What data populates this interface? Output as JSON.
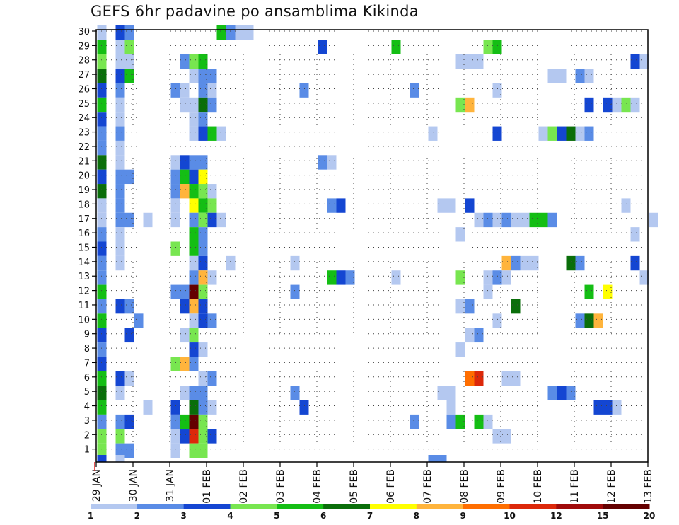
{
  "chart_data": {
    "type": "heatmap",
    "title": "GEFS 6hr padavine po ansamblima Kikinda",
    "ensemble_members": [
      1,
      2,
      3,
      4,
      5,
      6,
      7,
      8,
      9,
      10,
      11,
      12,
      13,
      14,
      15,
      16,
      17,
      18,
      19,
      20,
      21,
      22,
      23,
      24,
      25,
      26,
      27,
      28,
      29,
      30
    ],
    "x_labels": [
      "29 JAN",
      "30 JAN",
      "31 JAN",
      "01 FEB",
      "02 FEB",
      "03 FEB",
      "04 FEB",
      "05 FEB",
      "06 FEB",
      "07 FEB",
      "08 FEB",
      "09 FEB",
      "10 FEB",
      "11 FEB",
      "12 FEB",
      "13 FEB"
    ],
    "steps_per_day": 4,
    "grid": true,
    "legend_position": "bottom",
    "legend": {
      "levels": [
        "1",
        "2",
        "3",
        "4",
        "5",
        "6",
        "7",
        "8",
        "9",
        "10",
        "12",
        "15",
        "20"
      ],
      "colors": [
        "#b4c8f0",
        "#5a8ce6",
        "#1446d2",
        "#78e650",
        "#14be14",
        "#0a6e0a",
        "#ffff00",
        "#ffb43c",
        "#ff6e00",
        "#dc280a",
        "#a00a0a",
        "#640000"
      ]
    },
    "cells": [
      {
        "m": 30,
        "t": 0,
        "c": 0
      },
      {
        "m": 30,
        "t": 2,
        "c": 2
      },
      {
        "m": 30,
        "t": 3,
        "c": 1
      },
      {
        "m": 30,
        "t": 13,
        "c": 4
      },
      {
        "m": 30,
        "t": 14,
        "c": 1
      },
      {
        "m": 30,
        "t": 15,
        "c": 0
      },
      {
        "m": 30,
        "t": 16,
        "c": 0
      },
      {
        "m": 29,
        "t": 0,
        "c": 4
      },
      {
        "m": 29,
        "t": 2,
        "c": 0
      },
      {
        "m": 29,
        "t": 3,
        "c": 3
      },
      {
        "m": 29,
        "t": 24,
        "c": 2
      },
      {
        "m": 29,
        "t": 32,
        "c": 4
      },
      {
        "m": 29,
        "t": 42,
        "c": 3
      },
      {
        "m": 29,
        "t": 43,
        "c": 4
      },
      {
        "m": 28,
        "t": 0,
        "c": 3
      },
      {
        "m": 28,
        "t": 2,
        "c": 0
      },
      {
        "m": 28,
        "t": 3,
        "c": 0
      },
      {
        "m": 28,
        "t": 9,
        "c": 1
      },
      {
        "m": 28,
        "t": 10,
        "c": 3
      },
      {
        "m": 28,
        "t": 11,
        "c": 4
      },
      {
        "m": 28,
        "t": 39,
        "c": 0
      },
      {
        "m": 28,
        "t": 40,
        "c": 0
      },
      {
        "m": 28,
        "t": 41,
        "c": 0
      },
      {
        "m": 28,
        "t": 58,
        "c": 2
      },
      {
        "m": 28,
        "t": 59,
        "c": 0
      },
      {
        "m": 27,
        "t": 0,
        "c": 5
      },
      {
        "m": 27,
        "t": 2,
        "c": 2
      },
      {
        "m": 27,
        "t": 3,
        "c": 4
      },
      {
        "m": 27,
        "t": 10,
        "c": 0
      },
      {
        "m": 27,
        "t": 11,
        "c": 1
      },
      {
        "m": 27,
        "t": 12,
        "c": 1
      },
      {
        "m": 27,
        "t": 49,
        "c": 0
      },
      {
        "m": 27,
        "t": 50,
        "c": 0
      },
      {
        "m": 27,
        "t": 52,
        "c": 1
      },
      {
        "m": 27,
        "t": 53,
        "c": 0
      },
      {
        "m": 26,
        "t": 0,
        "c": 2
      },
      {
        "m": 26,
        "t": 2,
        "c": 1
      },
      {
        "m": 26,
        "t": 8,
        "c": 1
      },
      {
        "m": 26,
        "t": 9,
        "c": 0
      },
      {
        "m": 26,
        "t": 11,
        "c": 1
      },
      {
        "m": 26,
        "t": 12,
        "c": 0
      },
      {
        "m": 26,
        "t": 22,
        "c": 1
      },
      {
        "m": 26,
        "t": 34,
        "c": 1
      },
      {
        "m": 26,
        "t": 43,
        "c": 0
      },
      {
        "m": 25,
        "t": 0,
        "c": 4
      },
      {
        "m": 25,
        "t": 2,
        "c": 0
      },
      {
        "m": 25,
        "t": 9,
        "c": 0
      },
      {
        "m": 25,
        "t": 10,
        "c": 0
      },
      {
        "m": 25,
        "t": 11,
        "c": 5
      },
      {
        "m": 25,
        "t": 12,
        "c": 1
      },
      {
        "m": 25,
        "t": 39,
        "c": 3
      },
      {
        "m": 25,
        "t": 40,
        "c": 7
      },
      {
        "m": 25,
        "t": 53,
        "c": 2
      },
      {
        "m": 25,
        "t": 55,
        "c": 2
      },
      {
        "m": 25,
        "t": 56,
        "c": 0
      },
      {
        "m": 25,
        "t": 57,
        "c": 3
      },
      {
        "m": 25,
        "t": 58,
        "c": 0
      },
      {
        "m": 24,
        "t": 0,
        "c": 2
      },
      {
        "m": 24,
        "t": 2,
        "c": 0
      },
      {
        "m": 24,
        "t": 10,
        "c": 0
      },
      {
        "m": 24,
        "t": 11,
        "c": 1
      },
      {
        "m": 23,
        "t": 0,
        "c": 1
      },
      {
        "m": 23,
        "t": 2,
        "c": 1
      },
      {
        "m": 23,
        "t": 10,
        "c": 0
      },
      {
        "m": 23,
        "t": 11,
        "c": 2
      },
      {
        "m": 23,
        "t": 12,
        "c": 4
      },
      {
        "m": 23,
        "t": 13,
        "c": 0
      },
      {
        "m": 23,
        "t": 36,
        "c": 0
      },
      {
        "m": 23,
        "t": 43,
        "c": 2
      },
      {
        "m": 23,
        "t": 48,
        "c": 0
      },
      {
        "m": 23,
        "t": 49,
        "c": 3
      },
      {
        "m": 23,
        "t": 50,
        "c": 2
      },
      {
        "m": 23,
        "t": 51,
        "c": 5
      },
      {
        "m": 23,
        "t": 52,
        "c": 0
      },
      {
        "m": 23,
        "t": 53,
        "c": 1
      },
      {
        "m": 22,
        "t": 0,
        "c": 1
      },
      {
        "m": 22,
        "t": 2,
        "c": 0
      },
      {
        "m": 21,
        "t": 0,
        "c": 5
      },
      {
        "m": 21,
        "t": 2,
        "c": 0
      },
      {
        "m": 21,
        "t": 8,
        "c": 0
      },
      {
        "m": 21,
        "t": 9,
        "c": 2
      },
      {
        "m": 21,
        "t": 10,
        "c": 1
      },
      {
        "m": 21,
        "t": 11,
        "c": 1
      },
      {
        "m": 21,
        "t": 24,
        "c": 1
      },
      {
        "m": 21,
        "t": 25,
        "c": 0
      },
      {
        "m": 20,
        "t": 0,
        "c": 2
      },
      {
        "m": 20,
        "t": 2,
        "c": 1
      },
      {
        "m": 20,
        "t": 3,
        "c": 1
      },
      {
        "m": 20,
        "t": 8,
        "c": 1
      },
      {
        "m": 20,
        "t": 9,
        "c": 4
      },
      {
        "m": 20,
        "t": 10,
        "c": 2
      },
      {
        "m": 20,
        "t": 11,
        "c": 6
      },
      {
        "m": 19,
        "t": 0,
        "c": 5
      },
      {
        "m": 19,
        "t": 2,
        "c": 1
      },
      {
        "m": 19,
        "t": 8,
        "c": 1
      },
      {
        "m": 19,
        "t": 9,
        "c": 7
      },
      {
        "m": 19,
        "t": 10,
        "c": 4
      },
      {
        "m": 19,
        "t": 11,
        "c": 3
      },
      {
        "m": 19,
        "t": 12,
        "c": 0
      },
      {
        "m": 18,
        "t": 0,
        "c": 0
      },
      {
        "m": 18,
        "t": 2,
        "c": 1
      },
      {
        "m": 18,
        "t": 8,
        "c": 0
      },
      {
        "m": 18,
        "t": 10,
        "c": 6
      },
      {
        "m": 18,
        "t": 11,
        "c": 4
      },
      {
        "m": 18,
        "t": 12,
        "c": 3
      },
      {
        "m": 18,
        "t": 25,
        "c": 1
      },
      {
        "m": 18,
        "t": 26,
        "c": 2
      },
      {
        "m": 18,
        "t": 37,
        "c": 0
      },
      {
        "m": 18,
        "t": 38,
        "c": 0
      },
      {
        "m": 18,
        "t": 40,
        "c": 2
      },
      {
        "m": 18,
        "t": 57,
        "c": 0
      },
      {
        "m": 17,
        "t": 0,
        "c": 0
      },
      {
        "m": 17,
        "t": 2,
        "c": 1
      },
      {
        "m": 17,
        "t": 3,
        "c": 1
      },
      {
        "m": 17,
        "t": 5,
        "c": 0
      },
      {
        "m": 17,
        "t": 8,
        "c": 0
      },
      {
        "m": 17,
        "t": 10,
        "c": 1
      },
      {
        "m": 17,
        "t": 11,
        "c": 3
      },
      {
        "m": 17,
        "t": 12,
        "c": 2
      },
      {
        "m": 17,
        "t": 13,
        "c": 0
      },
      {
        "m": 17,
        "t": 41,
        "c": 0
      },
      {
        "m": 17,
        "t": 42,
        "c": 1
      },
      {
        "m": 17,
        "t": 43,
        "c": 0
      },
      {
        "m": 17,
        "t": 44,
        "c": 1
      },
      {
        "m": 17,
        "t": 45,
        "c": 0
      },
      {
        "m": 17,
        "t": 46,
        "c": 0
      },
      {
        "m": 17,
        "t": 47,
        "c": 4
      },
      {
        "m": 17,
        "t": 48,
        "c": 4
      },
      {
        "m": 17,
        "t": 49,
        "c": 1
      },
      {
        "m": 17,
        "t": 60,
        "c": 0
      },
      {
        "m": 16,
        "t": 0,
        "c": 1
      },
      {
        "m": 16,
        "t": 2,
        "c": 0
      },
      {
        "m": 16,
        "t": 10,
        "c": 4
      },
      {
        "m": 16,
        "t": 11,
        "c": 1
      },
      {
        "m": 16,
        "t": 39,
        "c": 0
      },
      {
        "m": 16,
        "t": 58,
        "c": 0
      },
      {
        "m": 15,
        "t": 0,
        "c": 2
      },
      {
        "m": 15,
        "t": 2,
        "c": 0
      },
      {
        "m": 15,
        "t": 8,
        "c": 3
      },
      {
        "m": 15,
        "t": 10,
        "c": 4
      },
      {
        "m": 15,
        "t": 11,
        "c": 1
      },
      {
        "m": 14,
        "t": 0,
        "c": 1
      },
      {
        "m": 14,
        "t": 2,
        "c": 0
      },
      {
        "m": 14,
        "t": 10,
        "c": 0
      },
      {
        "m": 14,
        "t": 11,
        "c": 2
      },
      {
        "m": 14,
        "t": 14,
        "c": 0
      },
      {
        "m": 14,
        "t": 21,
        "c": 0
      },
      {
        "m": 14,
        "t": 44,
        "c": 7
      },
      {
        "m": 14,
        "t": 45,
        "c": 1
      },
      {
        "m": 14,
        "t": 46,
        "c": 0
      },
      {
        "m": 14,
        "t": 47,
        "c": 0
      },
      {
        "m": 14,
        "t": 51,
        "c": 5
      },
      {
        "m": 14,
        "t": 52,
        "c": 1
      },
      {
        "m": 14,
        "t": 58,
        "c": 2
      },
      {
        "m": 13,
        "t": 0,
        "c": 1
      },
      {
        "m": 13,
        "t": 10,
        "c": 1
      },
      {
        "m": 13,
        "t": 11,
        "c": 7
      },
      {
        "m": 13,
        "t": 12,
        "c": 0
      },
      {
        "m": 13,
        "t": 25,
        "c": 4
      },
      {
        "m": 13,
        "t": 26,
        "c": 2
      },
      {
        "m": 13,
        "t": 27,
        "c": 1
      },
      {
        "m": 13,
        "t": 32,
        "c": 0
      },
      {
        "m": 13,
        "t": 39,
        "c": 3
      },
      {
        "m": 13,
        "t": 42,
        "c": 0
      },
      {
        "m": 13,
        "t": 43,
        "c": 1
      },
      {
        "m": 13,
        "t": 44,
        "c": 0
      },
      {
        "m": 13,
        "t": 59,
        "c": 0
      },
      {
        "m": 12,
        "t": 0,
        "c": 4
      },
      {
        "m": 12,
        "t": 8,
        "c": 1
      },
      {
        "m": 12,
        "t": 9,
        "c": 1
      },
      {
        "m": 12,
        "t": 10,
        "c": 11
      },
      {
        "m": 12,
        "t": 11,
        "c": 3
      },
      {
        "m": 12,
        "t": 21,
        "c": 1
      },
      {
        "m": 12,
        "t": 42,
        "c": 0
      },
      {
        "m": 12,
        "t": 53,
        "c": 4
      },
      {
        "m": 12,
        "t": 55,
        "c": 6
      },
      {
        "m": 11,
        "t": 0,
        "c": 1
      },
      {
        "m": 11,
        "t": 2,
        "c": 2
      },
      {
        "m": 11,
        "t": 3,
        "c": 1
      },
      {
        "m": 11,
        "t": 9,
        "c": 2
      },
      {
        "m": 11,
        "t": 10,
        "c": 7
      },
      {
        "m": 11,
        "t": 11,
        "c": 2
      },
      {
        "m": 11,
        "t": 39,
        "c": 0
      },
      {
        "m": 11,
        "t": 40,
        "c": 1
      },
      {
        "m": 11,
        "t": 45,
        "c": 5
      },
      {
        "m": 10,
        "t": 0,
        "c": 4
      },
      {
        "m": 10,
        "t": 4,
        "c": 1
      },
      {
        "m": 10,
        "t": 10,
        "c": 0
      },
      {
        "m": 10,
        "t": 11,
        "c": 2
      },
      {
        "m": 10,
        "t": 12,
        "c": 1
      },
      {
        "m": 10,
        "t": 43,
        "c": 0
      },
      {
        "m": 10,
        "t": 52,
        "c": 1
      },
      {
        "m": 10,
        "t": 53,
        "c": 5
      },
      {
        "m": 10,
        "t": 54,
        "c": 7
      },
      {
        "m": 9,
        "t": 0,
        "c": 2
      },
      {
        "m": 9,
        "t": 3,
        "c": 2
      },
      {
        "m": 9,
        "t": 9,
        "c": 0
      },
      {
        "m": 9,
        "t": 10,
        "c": 3
      },
      {
        "m": 9,
        "t": 40,
        "c": 0
      },
      {
        "m": 9,
        "t": 41,
        "c": 1
      },
      {
        "m": 8,
        "t": 0,
        "c": 1
      },
      {
        "m": 8,
        "t": 10,
        "c": 2
      },
      {
        "m": 8,
        "t": 11,
        "c": 0
      },
      {
        "m": 8,
        "t": 39,
        "c": 0
      },
      {
        "m": 7,
        "t": 0,
        "c": 2
      },
      {
        "m": 7,
        "t": 8,
        "c": 3
      },
      {
        "m": 7,
        "t": 9,
        "c": 7
      },
      {
        "m": 7,
        "t": 10,
        "c": 1
      },
      {
        "m": 6,
        "t": 0,
        "c": 4
      },
      {
        "m": 6,
        "t": 2,
        "c": 2
      },
      {
        "m": 6,
        "t": 3,
        "c": 0
      },
      {
        "m": 6,
        "t": 11,
        "c": 0
      },
      {
        "m": 6,
        "t": 12,
        "c": 1
      },
      {
        "m": 6,
        "t": 40,
        "c": 8
      },
      {
        "m": 6,
        "t": 41,
        "c": 9
      },
      {
        "m": 6,
        "t": 44,
        "c": 0
      },
      {
        "m": 6,
        "t": 45,
        "c": 0
      },
      {
        "m": 5,
        "t": 0,
        "c": 5
      },
      {
        "m": 5,
        "t": 2,
        "c": 0
      },
      {
        "m": 5,
        "t": 9,
        "c": 0
      },
      {
        "m": 5,
        "t": 10,
        "c": 1
      },
      {
        "m": 5,
        "t": 11,
        "c": 1
      },
      {
        "m": 5,
        "t": 21,
        "c": 1
      },
      {
        "m": 5,
        "t": 37,
        "c": 0
      },
      {
        "m": 5,
        "t": 38,
        "c": 0
      },
      {
        "m": 5,
        "t": 49,
        "c": 1
      },
      {
        "m": 5,
        "t": 50,
        "c": 2
      },
      {
        "m": 5,
        "t": 51,
        "c": 1
      },
      {
        "m": 4,
        "t": 0,
        "c": 4
      },
      {
        "m": 4,
        "t": 5,
        "c": 0
      },
      {
        "m": 4,
        "t": 8,
        "c": 2
      },
      {
        "m": 4,
        "t": 10,
        "c": 5
      },
      {
        "m": 4,
        "t": 11,
        "c": 1
      },
      {
        "m": 4,
        "t": 12,
        "c": 0
      },
      {
        "m": 4,
        "t": 22,
        "c": 2
      },
      {
        "m": 4,
        "t": 38,
        "c": 0
      },
      {
        "m": 4,
        "t": 54,
        "c": 2
      },
      {
        "m": 4,
        "t": 55,
        "c": 2
      },
      {
        "m": 4,
        "t": 56,
        "c": 0
      },
      {
        "m": 3,
        "t": 0,
        "c": 1
      },
      {
        "m": 3,
        "t": 2,
        "c": 1
      },
      {
        "m": 3,
        "t": 3,
        "c": 2
      },
      {
        "m": 3,
        "t": 8,
        "c": 1
      },
      {
        "m": 3,
        "t": 9,
        "c": 4
      },
      {
        "m": 3,
        "t": 10,
        "c": 11
      },
      {
        "m": 3,
        "t": 11,
        "c": 3
      },
      {
        "m": 3,
        "t": 34,
        "c": 1
      },
      {
        "m": 3,
        "t": 38,
        "c": 1
      },
      {
        "m": 3,
        "t": 39,
        "c": 4
      },
      {
        "m": 3,
        "t": 41,
        "c": 4
      },
      {
        "m": 3,
        "t": 42,
        "c": 0
      },
      {
        "m": 2,
        "t": 0,
        "c": 3
      },
      {
        "m": 2,
        "t": 2,
        "c": 3
      },
      {
        "m": 2,
        "t": 8,
        "c": 0
      },
      {
        "m": 2,
        "t": 9,
        "c": 2
      },
      {
        "m": 2,
        "t": 10,
        "c": 9
      },
      {
        "m": 2,
        "t": 11,
        "c": 3
      },
      {
        "m": 2,
        "t": 12,
        "c": 2
      },
      {
        "m": 2,
        "t": 43,
        "c": 0
      },
      {
        "m": 2,
        "t": 44,
        "c": 0
      },
      {
        "m": 1,
        "t": 0,
        "c": 3
      },
      {
        "m": 1,
        "t": 2,
        "c": 1
      },
      {
        "m": 1,
        "t": 3,
        "c": 1
      },
      {
        "m": 1,
        "t": 8,
        "c": 0
      },
      {
        "m": 1,
        "t": 10,
        "c": 3
      },
      {
        "m": 1,
        "t": 11,
        "c": 3
      },
      {
        "m": 0,
        "t": 0,
        "c": 2
      },
      {
        "m": 0,
        "t": 2,
        "c": 0
      },
      {
        "m": 0,
        "t": 36,
        "c": 1
      },
      {
        "m": 0,
        "t": 37,
        "c": 1
      }
    ]
  }
}
